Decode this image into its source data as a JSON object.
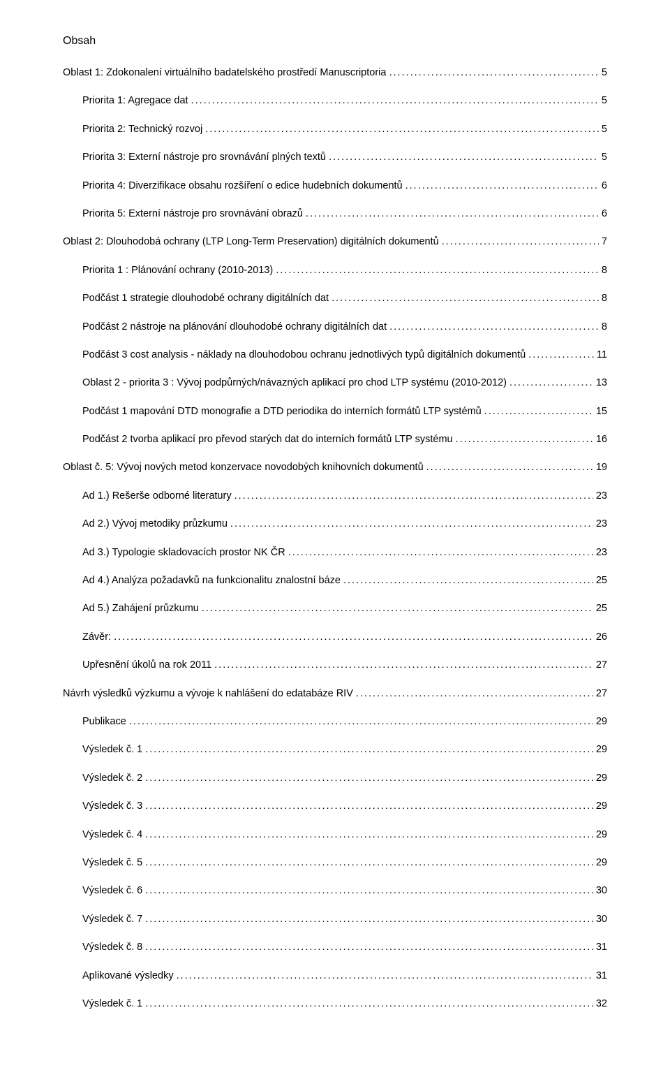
{
  "title": "Obsah",
  "toc": [
    {
      "label": "Oblast 1: Zdokonalení virtuálního badatelského prostředí Manuscriptoria",
      "page": "5",
      "indent": 0
    },
    {
      "label": "Priorita 1: Agregace dat",
      "page": "5",
      "indent": 1
    },
    {
      "label": "Priorita 2: Technický rozvoj",
      "page": "5",
      "indent": 1
    },
    {
      "label": "Priorita 3: Externí nástroje pro srovnávání plných textů",
      "page": "5",
      "indent": 1
    },
    {
      "label": "Priorita 4: Diverzifikace obsahu rozšíření o edice hudebních dokumentů",
      "page": "6",
      "indent": 1
    },
    {
      "label": "Priorita 5: Externí nástroje pro srovnávání obrazů",
      "page": "6",
      "indent": 1
    },
    {
      "label": "Oblast 2: Dlouhodobá ochrany (LTP Long-Term Preservation) digitálních dokumentů",
      "page": "7",
      "indent": 0
    },
    {
      "label": "Priorita 1 : Plánování ochrany (2010-2013)",
      "page": "8",
      "indent": 1
    },
    {
      "label": "Podčást 1 strategie dlouhodobé ochrany digitálních dat",
      "page": "8",
      "indent": 1
    },
    {
      "label": "Podčást 2 nástroje na plánování dlouhodobé ochrany digitálních dat",
      "page": "8",
      "indent": 1
    },
    {
      "label": "Podčást 3 cost analysis - náklady na dlouhodobou ochranu jednotlivých typů digitálních dokumentů",
      "page": "11",
      "indent": 1
    },
    {
      "label": "Oblast 2 - priorita 3 : Vývoj podpůrných/návazných aplikací pro chod LTP systému (2010-2012)",
      "page": "13",
      "indent": 1
    },
    {
      "label": "Podčást 1 mapování DTD monografie a DTD periodika do interních formátů LTP systémů",
      "page": "15",
      "indent": 1
    },
    {
      "label": "Podčást 2 tvorba aplikací pro převod starých dat do interních formátů LTP systému",
      "page": "16",
      "indent": 1
    },
    {
      "label": "Oblast č. 5: Vývoj nových metod konzervace novodobých knihovních dokumentů",
      "page": "19",
      "indent": 0
    },
    {
      "label": "Ad 1.) Rešerše odborné literatury",
      "page": "23",
      "indent": 1
    },
    {
      "label": "Ad 2.) Vývoj metodiky průzkumu",
      "page": "23",
      "indent": 1
    },
    {
      "label": "Ad 3.) Typologie skladovacích prostor NK ČR",
      "page": "23",
      "indent": 1
    },
    {
      "label": "Ad 4.) Analýza požadavků na funkcionalitu znalostní báze",
      "page": "25",
      "indent": 1
    },
    {
      "label": "Ad 5.) Zahájení průzkumu",
      "page": "25",
      "indent": 1
    },
    {
      "label": "Závěr:",
      "page": "26",
      "indent": 1
    },
    {
      "label": "Upřesnění úkolů na rok 2011",
      "page": "27",
      "indent": 1
    },
    {
      "label": "Návrh výsledků výzkumu a vývoje k nahlášení do edatabáze RIV",
      "page": "27",
      "indent": 0
    },
    {
      "label": "Publikace",
      "page": "29",
      "indent": 1
    },
    {
      "label": "Výsledek č. 1",
      "page": "29",
      "indent": 1
    },
    {
      "label": "Výsledek č. 2",
      "page": "29",
      "indent": 1
    },
    {
      "label": "Výsledek č. 3",
      "page": "29",
      "indent": 1
    },
    {
      "label": "Výsledek č. 4",
      "page": "29",
      "indent": 1
    },
    {
      "label": "Výsledek č. 5",
      "page": "29",
      "indent": 1
    },
    {
      "label": "Výsledek č. 6",
      "page": "30",
      "indent": 1
    },
    {
      "label": "Výsledek č. 7",
      "page": "30",
      "indent": 1
    },
    {
      "label": "Výsledek č. 8",
      "page": "31",
      "indent": 1
    },
    {
      "label": "Aplikované výsledky",
      "page": "31",
      "indent": 1
    },
    {
      "label": "Výsledek č. 1",
      "page": "32",
      "indent": 1
    }
  ]
}
